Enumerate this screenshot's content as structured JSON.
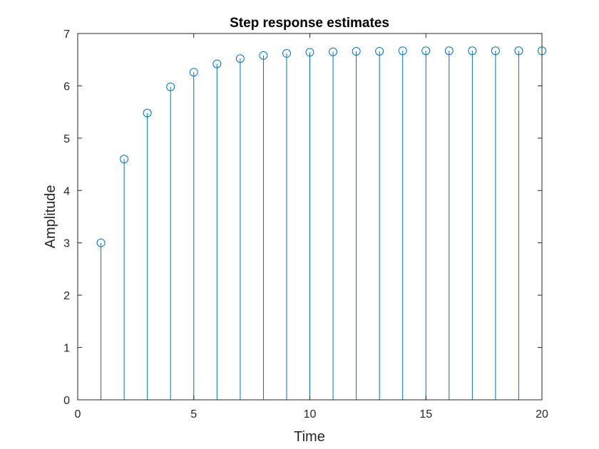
{
  "chart_data": {
    "type": "stem",
    "title": "Step response estimates",
    "xlabel": "Time",
    "ylabel": "Amplitude",
    "xlim": [
      0,
      20
    ],
    "ylim": [
      0,
      7
    ],
    "xticks": [
      0,
      5,
      10,
      15,
      20
    ],
    "yticks": [
      0,
      1,
      2,
      3,
      4,
      5,
      6,
      7
    ],
    "grid": false,
    "marker": "circle-open",
    "series": [
      {
        "color": "#0072BD",
        "x": [
          1,
          2,
          3,
          4,
          5,
          6,
          7,
          8,
          9,
          10,
          11,
          12,
          13,
          14,
          15,
          16,
          17,
          18,
          19,
          20
        ],
        "values": [
          3.0,
          4.6,
          5.48,
          5.98,
          6.26,
          6.42,
          6.52,
          6.58,
          6.62,
          6.64,
          6.65,
          6.66,
          6.66,
          6.67,
          6.67,
          6.67,
          6.67,
          6.67,
          6.67,
          6.67
        ]
      }
    ]
  },
  "colors": {
    "axes": "#262626",
    "stem": "#0072BD",
    "background": "#ffffff"
  }
}
